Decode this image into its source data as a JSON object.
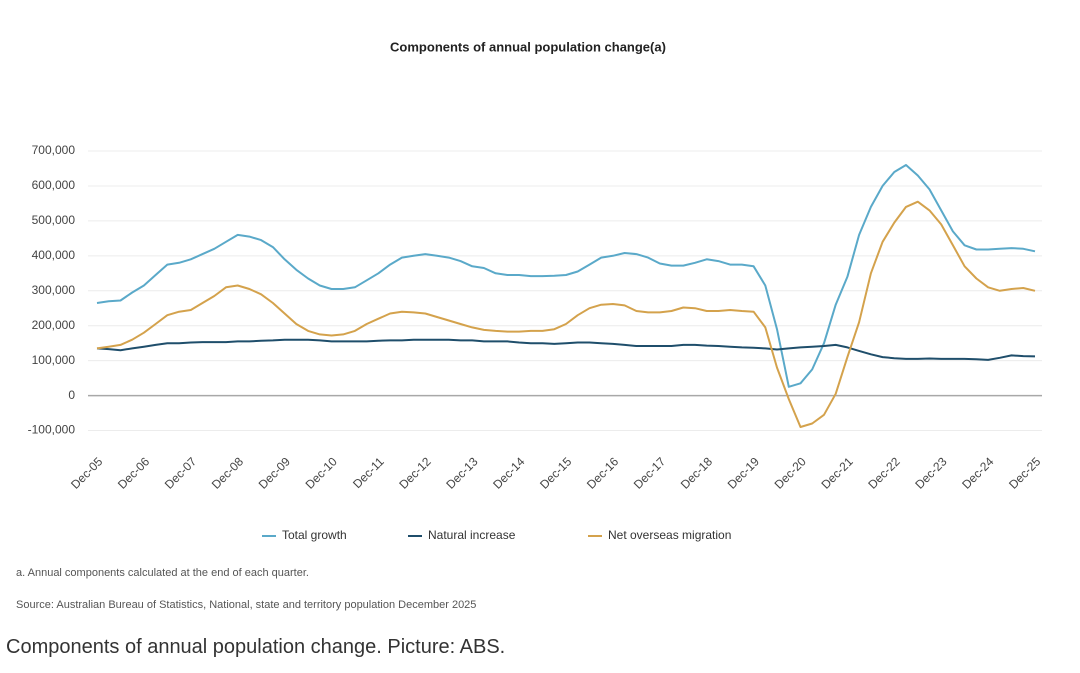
{
  "chart_data": {
    "type": "line",
    "title": "Components of annual population change(a)",
    "categories": [
      "Dec-05",
      null,
      null,
      null,
      "Dec-06",
      null,
      null,
      null,
      "Dec-07",
      null,
      null,
      null,
      "Dec-08",
      null,
      null,
      null,
      "Dec-09",
      null,
      null,
      null,
      "Dec-10",
      null,
      null,
      null,
      "Dec-11",
      null,
      null,
      null,
      "Dec-12",
      null,
      null,
      null,
      "Dec-13",
      null,
      null,
      null,
      "Dec-14",
      null,
      null,
      null,
      "Dec-15",
      null,
      null,
      null,
      "Dec-16",
      null,
      null,
      null,
      "Dec-17",
      null,
      null,
      null,
      "Dec-18",
      null,
      null,
      null,
      "Dec-19",
      null,
      null,
      null,
      "Dec-20",
      null,
      null,
      null,
      "Dec-21",
      null,
      null,
      null,
      "Dec-22",
      null,
      null,
      null,
      "Dec-23",
      null,
      null,
      null,
      "Dec-24",
      null,
      null,
      null,
      "Dec-25"
    ],
    "series": [
      {
        "name": "Total growth",
        "color": "#5aa9c9",
        "values": [
          265000,
          270000,
          272000,
          295000,
          315000,
          345000,
          375000,
          380000,
          390000,
          405000,
          420000,
          440000,
          460000,
          455000,
          445000,
          425000,
          390000,
          360000,
          335000,
          315000,
          305000,
          305000,
          310000,
          330000,
          350000,
          375000,
          395000,
          400000,
          405000,
          400000,
          395000,
          385000,
          370000,
          365000,
          350000,
          345000,
          345000,
          342000,
          342000,
          343000,
          345000,
          355000,
          375000,
          395000,
          400000,
          408000,
          405000,
          395000,
          378000,
          372000,
          372000,
          380000,
          390000,
          385000,
          375000,
          375000,
          370000,
          315000,
          190000,
          25000,
          35000,
          75000,
          150000,
          260000,
          340000,
          460000,
          540000,
          600000,
          640000,
          660000,
          630000,
          590000,
          530000,
          470000,
          430000,
          418000,
          418000,
          420000,
          422000,
          420000,
          413000
        ]
      },
      {
        "name": "Natural increase",
        "color": "#1f4e6b",
        "values": [
          135000,
          133000,
          130000,
          135000,
          140000,
          145000,
          150000,
          150000,
          152000,
          153000,
          153000,
          153000,
          155000,
          155000,
          157000,
          158000,
          160000,
          160000,
          160000,
          158000,
          155000,
          155000,
          155000,
          155000,
          157000,
          158000,
          158000,
          160000,
          160000,
          160000,
          160000,
          158000,
          158000,
          155000,
          155000,
          155000,
          152000,
          150000,
          150000,
          148000,
          150000,
          152000,
          152000,
          150000,
          148000,
          145000,
          142000,
          142000,
          142000,
          142000,
          145000,
          145000,
          143000,
          142000,
          140000,
          138000,
          137000,
          135000,
          132000,
          135000,
          138000,
          140000,
          142000,
          145000,
          138000,
          128000,
          118000,
          110000,
          107000,
          105000,
          105000,
          106000,
          105000,
          105000,
          105000,
          104000,
          102000,
          108000,
          115000,
          113000,
          112000
        ]
      },
      {
        "name": "Net overseas migration",
        "color": "#d4a24c",
        "values": [
          135000,
          140000,
          145000,
          160000,
          180000,
          205000,
          230000,
          240000,
          245000,
          265000,
          285000,
          310000,
          315000,
          305000,
          290000,
          265000,
          235000,
          205000,
          185000,
          175000,
          172000,
          175000,
          185000,
          205000,
          220000,
          235000,
          240000,
          238000,
          235000,
          225000,
          215000,
          205000,
          195000,
          188000,
          185000,
          183000,
          183000,
          185000,
          185000,
          190000,
          205000,
          230000,
          250000,
          260000,
          262000,
          258000,
          242000,
          238000,
          238000,
          242000,
          252000,
          250000,
          242000,
          242000,
          245000,
          242000,
          240000,
          195000,
          80000,
          -10000,
          -90000,
          -80000,
          -55000,
          5000,
          110000,
          210000,
          350000,
          440000,
          495000,
          540000,
          555000,
          530000,
          490000,
          430000,
          370000,
          335000,
          310000,
          300000,
          305000,
          308000,
          300000
        ]
      }
    ],
    "ylim": [
      -130000,
      700000
    ],
    "yticks": [
      {
        "value": -100000,
        "label": "-100,000"
      },
      0,
      {
        "value": 100000,
        "label": "100,000"
      },
      {
        "value": 200000,
        "label": "200,000"
      },
      {
        "value": 300000,
        "label": "300,000"
      },
      {
        "value": 400000,
        "label": "400,000"
      },
      {
        "value": 500000,
        "label": "500,000"
      },
      {
        "value": 600000,
        "label": "600,000"
      },
      {
        "value": 700000,
        "label": "700,000"
      }
    ],
    "grid": true,
    "legend": "bottom",
    "notes": [
      "a. Annual components calculated at the end of each quarter.",
      "Source: Australian Bureau of Statistics, National, state and territory population December 2025"
    ]
  },
  "caption": "Components of annual population change. Picture: ABS."
}
